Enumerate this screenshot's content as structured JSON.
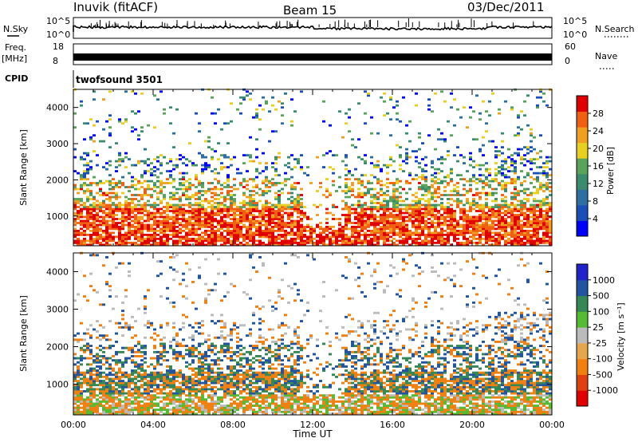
{
  "header": {
    "station": "Inuvik (fitACF)",
    "beam": "Beam 15",
    "date": "03/Dec/2011"
  },
  "labels": {
    "nsky": "N.Sky",
    "nsky_ticks": [
      "10^5",
      "10^0"
    ],
    "nsearch": "N.Search",
    "nsearch_ticks": [
      "10^5",
      "10^0"
    ],
    "freq": "Freq.",
    "freq_unit": "[MHz]",
    "freq_ticks": [
      "18",
      "8"
    ],
    "nave": "Nave",
    "nave_ticks": [
      "60",
      "0"
    ],
    "cpid": "CPID",
    "program": "twofsound 3501"
  },
  "colors": {
    "power_scale": [
      "#0000ff",
      "#1a4fb8",
      "#2c6fa0",
      "#3a8c6e",
      "#5aa35a",
      "#e8d020",
      "#f0a020",
      "#f06010",
      "#e00000"
    ],
    "velocity_scale": [
      "#2222cc",
      "#2255a0",
      "#338855",
      "#55bb33",
      "#bbbbbb",
      "#e6a64b",
      "#f08010",
      "#e04010",
      "#e00000"
    ],
    "trace": "#000000"
  },
  "chart_data": [
    {
      "type": "heatmap",
      "title": "",
      "xlabel": "",
      "ylabel": "Slant Range [km]",
      "x_ticks": [
        "00:00",
        "04:00",
        "08:00",
        "12:00",
        "16:00",
        "20:00",
        "00:00"
      ],
      "y_ticks": [
        1000,
        2000,
        3000,
        4000
      ],
      "ylim": [
        180,
        4500
      ],
      "xlim_hours": [
        0,
        24
      ],
      "colorbar": {
        "label": "Power [dB]",
        "ticks": [
          4,
          8,
          12,
          16,
          20,
          24,
          28
        ],
        "range": [
          0,
          32
        ]
      }
    },
    {
      "type": "heatmap",
      "title": "",
      "xlabel": "Time UT",
      "ylabel": "Slant Range [km]",
      "x_ticks": [
        "00:00",
        "04:00",
        "08:00",
        "12:00",
        "16:00",
        "20:00",
        "00:00"
      ],
      "y_ticks": [
        1000,
        2000,
        3000,
        4000
      ],
      "ylim": [
        180,
        4500
      ],
      "xlim_hours": [
        0,
        24
      ],
      "colorbar": {
        "label": "Velocity [m s⁻¹]",
        "ticks": [
          1000,
          500,
          100,
          25,
          -25,
          -100,
          -500,
          -1000
        ]
      }
    }
  ]
}
